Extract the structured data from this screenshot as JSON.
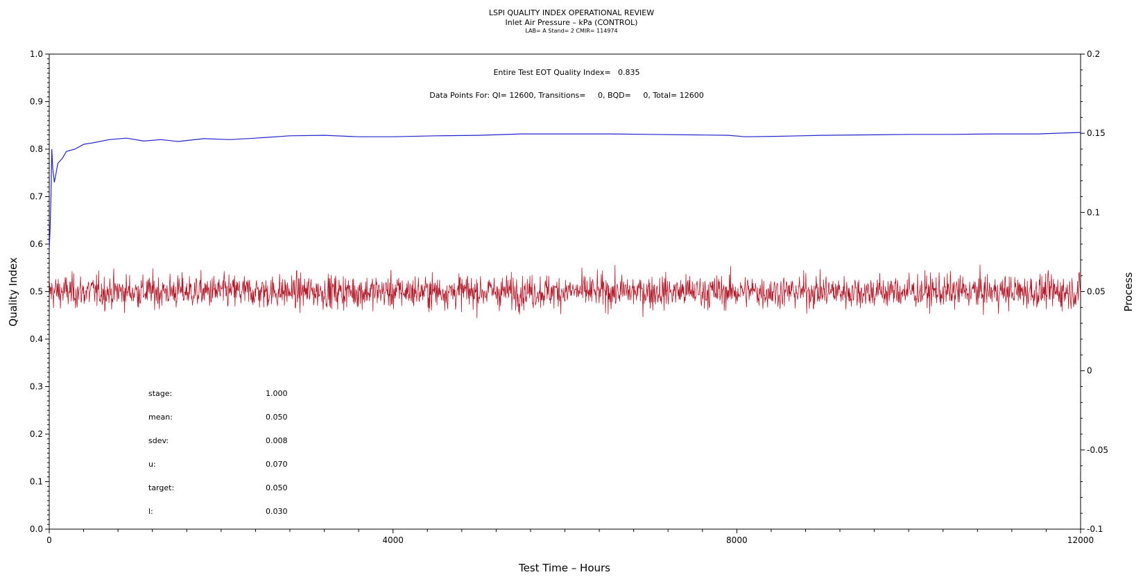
{
  "titles": {
    "main": "LSPI QUALITY INDEX OPERATIONAL REVIEW",
    "sub": "Inlet Air Pressure – kPa (CONTROL)",
    "meta": "LAB= A Stand= 2 CMIR= 114974"
  },
  "annotations": {
    "qi_line": "Entire Test EOT Quality Index=   0.835",
    "points_line": "Data Points For: QI= 12600, Transitions=     0, BQD=     0, Total= 12600"
  },
  "stats": [
    {
      "label": "stage:",
      "value": "1.000"
    },
    {
      "label": "mean:",
      "value": "0.050"
    },
    {
      "label": "sdev:",
      "value": "0.008"
    },
    {
      "label": "u:",
      "value": "0.070"
    },
    {
      "label": "target:",
      "value": "0.050"
    },
    {
      "label": "l:",
      "value": "0.030"
    }
  ],
  "chart_data": {
    "type": "line",
    "xlabel": "Test Time – Hours",
    "ylabel_left": "Quality Index",
    "ylabel_right": "Process",
    "xlim": [
      0,
      12000
    ],
    "ylim_left": [
      0.0,
      1.0
    ],
    "ylim_right": [
      -0.1,
      0.2
    ],
    "x_ticks": [
      "0",
      "4000",
      "8000",
      "12000"
    ],
    "y_ticks_left": [
      "0.0",
      "0.1",
      "0.2",
      "0.3",
      "0.4",
      "0.5",
      "0.6",
      "0.7",
      "0.8",
      "0.9",
      "1.0"
    ],
    "y_ticks_right": [
      "-0.1",
      "-0.05",
      "0",
      "0.05",
      "0.1",
      "0.15",
      "0.2"
    ],
    "series": [
      {
        "axis": "left",
        "color": "#2222cc",
        "x": [
          0,
          10,
          20,
          30,
          40,
          60,
          80,
          100,
          150,
          200,
          300,
          400,
          500,
          700,
          900,
          1100,
          1300,
          1500,
          1800,
          2100,
          2400,
          2800,
          3200,
          3600,
          4000,
          4500,
          5000,
          5500,
          6000,
          6500,
          7000,
          7500,
          7900,
          8100,
          8500,
          9000,
          9500,
          10000,
          10500,
          11000,
          11500,
          12000
        ],
        "values": [
          0.59,
          0.63,
          0.7,
          0.8,
          0.76,
          0.73,
          0.75,
          0.77,
          0.78,
          0.795,
          0.8,
          0.81,
          0.813,
          0.82,
          0.823,
          0.817,
          0.82,
          0.816,
          0.822,
          0.82,
          0.823,
          0.828,
          0.829,
          0.826,
          0.826,
          0.828,
          0.829,
          0.832,
          0.832,
          0.832,
          0.831,
          0.83,
          0.829,
          0.826,
          0.827,
          0.829,
          0.83,
          0.831,
          0.831,
          0.832,
          0.832,
          0.835
        ]
      },
      {
        "axis": "right",
        "color": "#b01828",
        "points": 12600,
        "mean": 0.05,
        "spread_min": 0.026,
        "spread_max": 0.074
      }
    ]
  }
}
